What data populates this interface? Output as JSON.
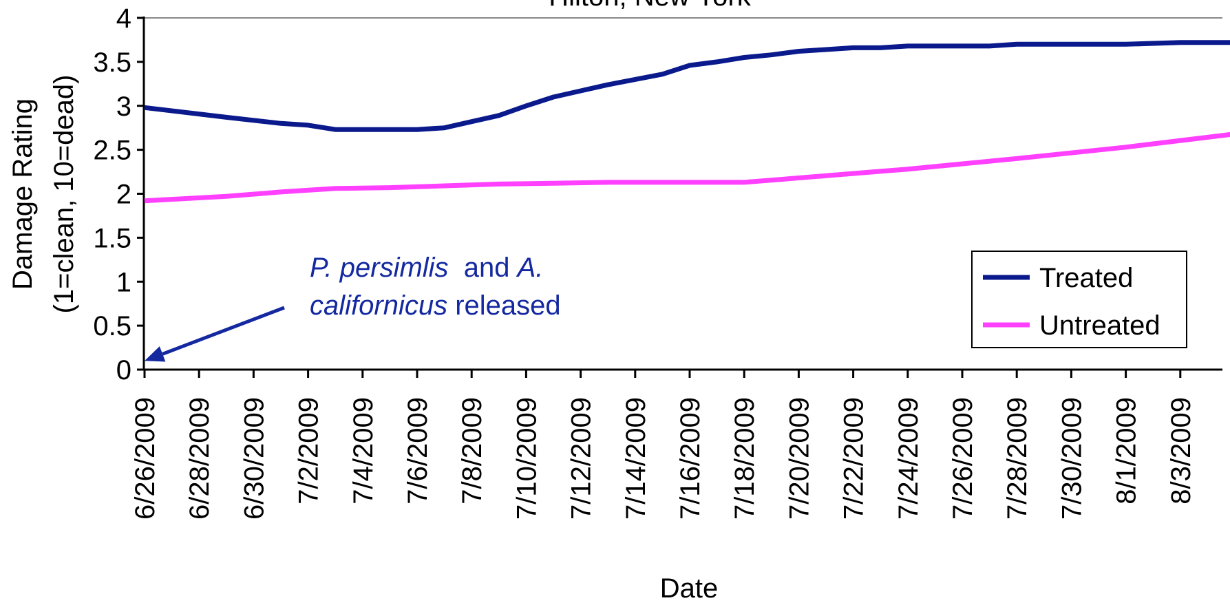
{
  "chart_data": {
    "type": "line",
    "title": "Hilton, New York",
    "xlabel": "Date",
    "ylabel": "Damage Rating",
    "ylabel_sub": "(1=clean, 10=dead)",
    "ylim": [
      0,
      4
    ],
    "yticks": [
      "0",
      "0.5",
      "1",
      "1.5",
      "2",
      "2.5",
      "3",
      "3.5",
      "4"
    ],
    "x_tick_labels": [
      "6/26/2009",
      "6/28/2009",
      "6/30/2009",
      "7/2/2009",
      "7/4/2009",
      "7/6/2009",
      "7/8/2009",
      "7/10/2009",
      "7/12/2009",
      "7/14/2009",
      "7/16/2009",
      "7/18/2009",
      "7/20/2009",
      "7/22/2009",
      "7/24/2009",
      "7/26/2009",
      "7/28/2009",
      "7/30/2009",
      "8/1/2009",
      "8/3/2009"
    ],
    "x_domain": [
      "6/26/2009",
      "8/5/2009"
    ],
    "grid": false,
    "legend_position": "bottom-right",
    "series": [
      {
        "name": "Treated",
        "color": "#0A1A8C",
        "points": [
          [
            "6/26/2009",
            2.98
          ],
          [
            "6/29/2009",
            2.87
          ],
          [
            "7/1/2009",
            2.8
          ],
          [
            "7/2/2009",
            2.78
          ],
          [
            "7/3/2009",
            2.73
          ],
          [
            "7/6/2009",
            2.73
          ],
          [
            "7/7/2009",
            2.75
          ],
          [
            "7/8/2009",
            2.82
          ],
          [
            "7/9/2009",
            2.89
          ],
          [
            "7/10/2009",
            3.0
          ],
          [
            "7/11/2009",
            3.1
          ],
          [
            "7/12/2009",
            3.17
          ],
          [
            "7/13/2009",
            3.24
          ],
          [
            "7/14/2009",
            3.3
          ],
          [
            "7/15/2009",
            3.36
          ],
          [
            "7/16/2009",
            3.46
          ],
          [
            "7/17/2009",
            3.5
          ],
          [
            "7/18/2009",
            3.55
          ],
          [
            "7/19/2009",
            3.58
          ],
          [
            "7/20/2009",
            3.62
          ],
          [
            "7/21/2009",
            3.64
          ],
          [
            "7/22/2009",
            3.66
          ],
          [
            "7/23/2009",
            3.66
          ],
          [
            "7/24/2009",
            3.68
          ],
          [
            "7/27/2009",
            3.68
          ],
          [
            "7/28/2009",
            3.7
          ],
          [
            "7/31/2009",
            3.7
          ],
          [
            "8/1/2009",
            3.7
          ],
          [
            "8/3/2009",
            3.72
          ],
          [
            "8/5/2009",
            3.72
          ]
        ]
      },
      {
        "name": "Untreated",
        "color": "#FF40FF",
        "points": [
          [
            "6/26/2009",
            1.92
          ],
          [
            "6/29/2009",
            1.97
          ],
          [
            "7/1/2009",
            2.02
          ],
          [
            "7/3/2009",
            2.06
          ],
          [
            "7/5/2009",
            2.07
          ],
          [
            "7/7/2009",
            2.09
          ],
          [
            "7/9/2009",
            2.11
          ],
          [
            "7/11/2009",
            2.12
          ],
          [
            "7/13/2009",
            2.13
          ],
          [
            "7/18/2009",
            2.13
          ],
          [
            "7/20/2009",
            2.18
          ],
          [
            "7/24/2009",
            2.28
          ],
          [
            "7/28/2009",
            2.4
          ],
          [
            "8/1/2009",
            2.53
          ],
          [
            "8/5/2009",
            2.68
          ]
        ]
      }
    ],
    "annotation": {
      "line1_italic": "P. persimlis",
      "line1_plain": "  and ",
      "line1_italic2": "A.",
      "line2_italic": "californicus",
      "line2_plain": " released",
      "color": "#1428A0",
      "points_to": [
        "6/26/2009",
        0.1
      ]
    }
  }
}
